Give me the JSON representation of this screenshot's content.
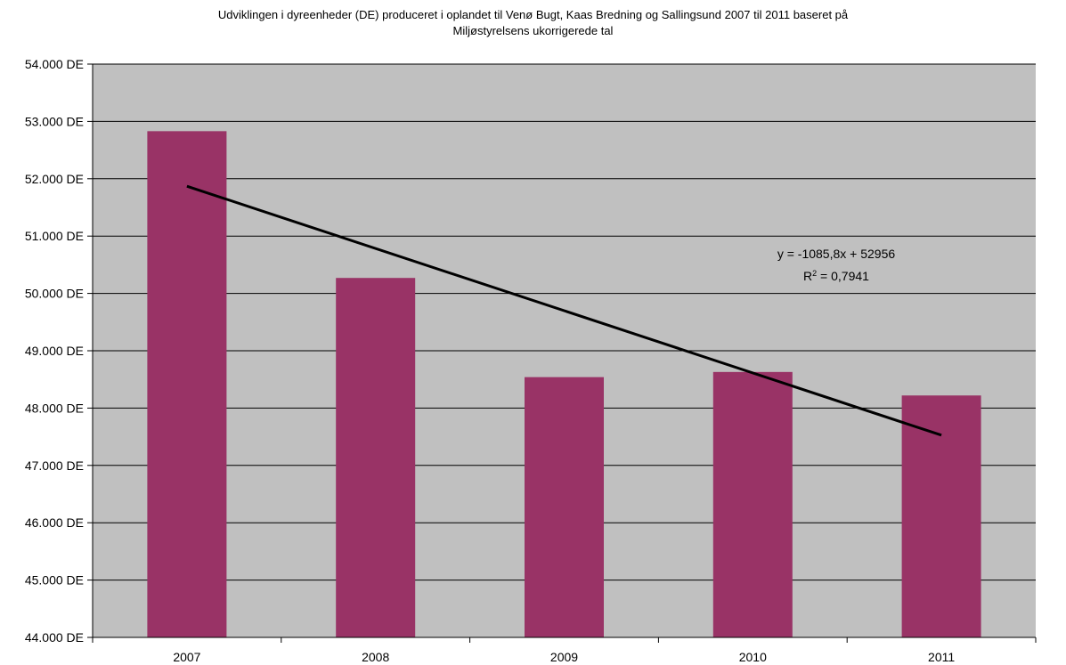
{
  "chart_data": {
    "type": "bar",
    "title_line1": "Udviklingen i dyreenheder (DE) produceret i oplandet til Venø Bugt, Kaas Bredning og Sallingsund 2007 til 2011 baseret på",
    "title_line2": "Miljøstyrelsens ukorrigerede tal",
    "categories": [
      "2007",
      "2008",
      "2009",
      "2010",
      "2011"
    ],
    "values": [
      52830,
      50270,
      48540,
      48630,
      48220
    ],
    "ylim": [
      44000,
      54000
    ],
    "yticks": [
      44000,
      45000,
      46000,
      47000,
      48000,
      49000,
      50000,
      51000,
      52000,
      53000,
      54000
    ],
    "ytick_labels": [
      "44.000 DE",
      "45.000 DE",
      "46.000 DE",
      "47.000 DE",
      "48.000 DE",
      "49.000 DE",
      "50.000 DE",
      "51.000 DE",
      "52.000 DE",
      "53.000 DE",
      "54.000 DE"
    ],
    "grid": true,
    "bar_color": "#993366",
    "plot_background": "#c0c0c0",
    "trendline": {
      "type": "linear",
      "slope": -1085.8,
      "intercept": 52956,
      "equation_label": "y = -1085,8x + 52956",
      "r2_prefix": "R",
      "r2_exponent": "2",
      "r2_value": " = 0,7941",
      "color": "#000000"
    }
  }
}
